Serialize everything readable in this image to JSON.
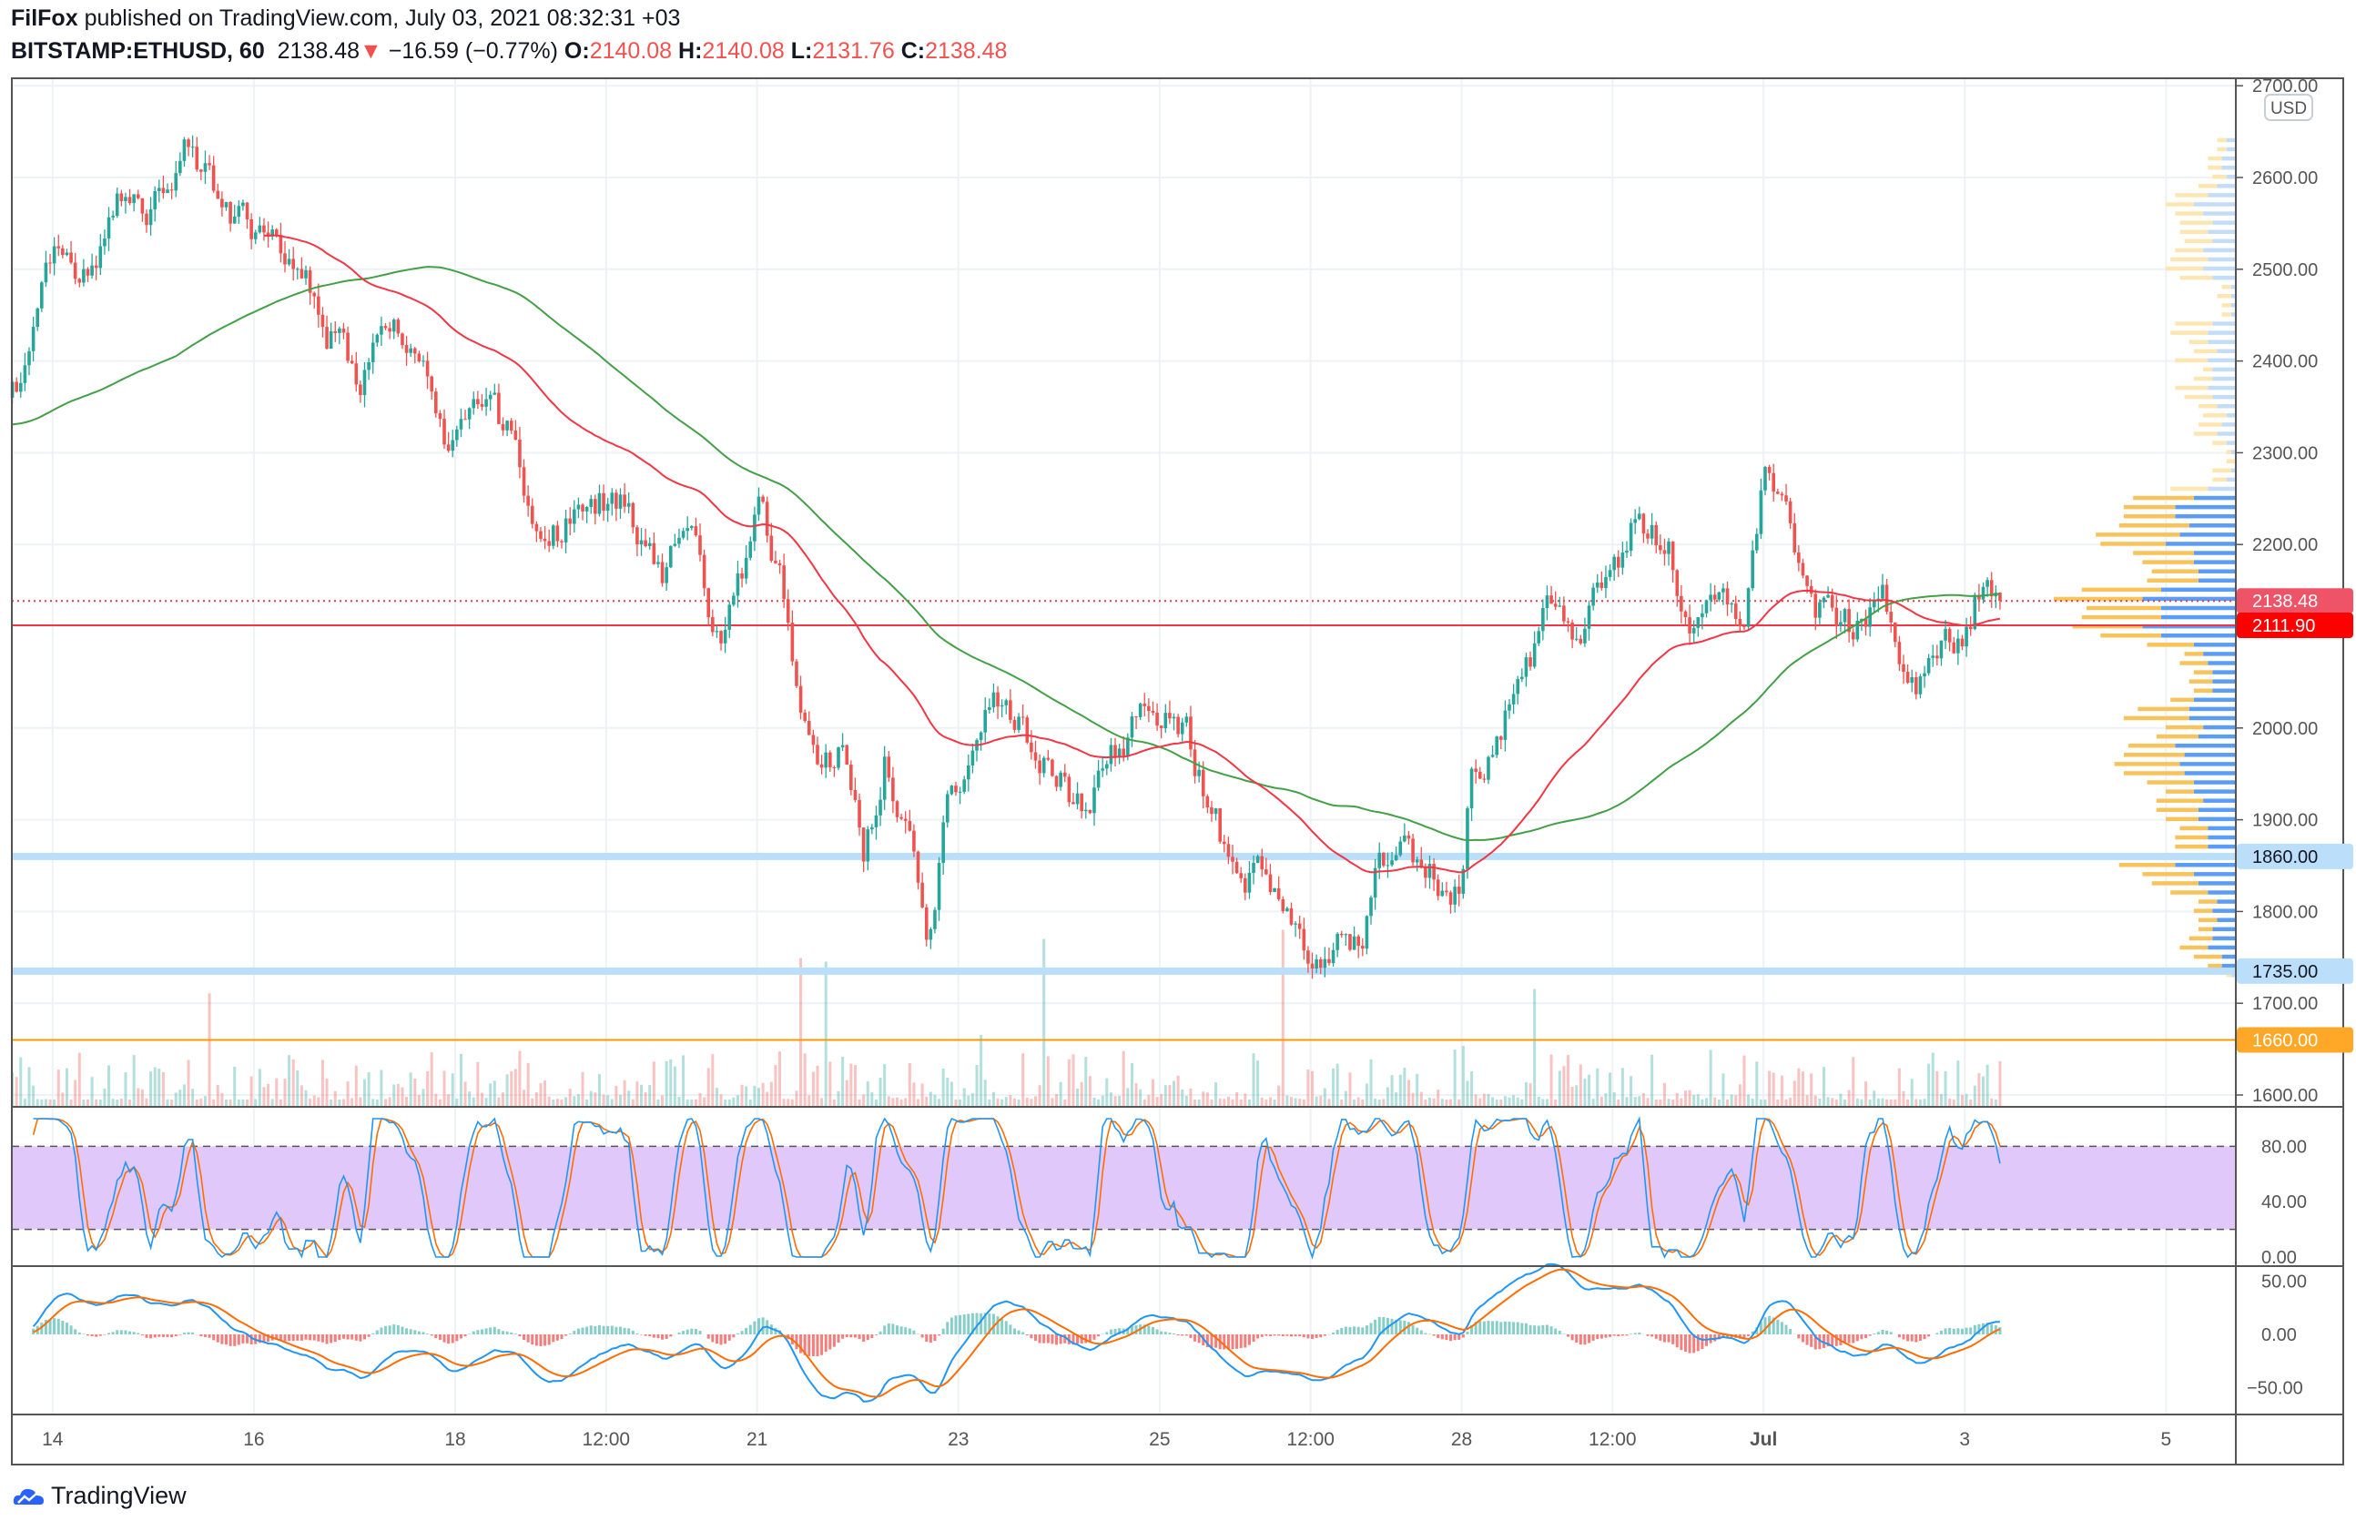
{
  "header": {
    "author": "FilFox",
    "published_text": "published on TradingView.com, July 03, 2021 08:32:31 +03",
    "symbol": "BITSTAMP:ETHUSD, 60",
    "last": "2138.48",
    "change": "−16.59 (−0.77%)",
    "o_label": "O:",
    "o": "2140.08",
    "h_label": "H:",
    "h": "2140.08",
    "l_label": "L:",
    "l": "2131.76",
    "c_label": "C:",
    "c": "2138.48"
  },
  "currency": "USD",
  "footer": {
    "brand": "TradingView"
  },
  "colors": {
    "up": "#26a69a",
    "down": "#ef5350",
    "ema_red": "#f23645",
    "ma_green": "#43a047",
    "stoch_k": "#2196f3",
    "stoch_d": "#ff6d00",
    "rsi_band": "#e1c8fb",
    "orange": "#ff9800",
    "blue_level": "#bbdefb"
  },
  "chart_data": {
    "type": "candlestick",
    "title": "BITSTAMP:ETHUSD, 60",
    "x_unit": "days since Jun 14 2021 00:00",
    "price_path": [
      [
        -0.4,
        2360
      ],
      [
        -0.3,
        2350
      ],
      [
        -0.15,
        2450
      ],
      [
        0,
        2530
      ],
      [
        0.37,
        2480
      ],
      [
        0.67,
        2565
      ],
      [
        0.9,
        2550
      ],
      [
        1.12,
        2600
      ],
      [
        1.34,
        2630
      ],
      [
        1.64,
        2580
      ],
      [
        1.94,
        2540
      ],
      [
        2.24,
        2530
      ],
      [
        2.46,
        2520
      ],
      [
        2.69,
        2435
      ],
      [
        3.06,
        2385
      ],
      [
        3.43,
        2440
      ],
      [
        3.73,
        2390
      ],
      [
        3.88,
        2320
      ],
      [
        4.1,
        2350
      ],
      [
        4.55,
        2320
      ],
      [
        4.85,
        2190
      ],
      [
        5.22,
        2240
      ],
      [
        5.67,
        2255
      ],
      [
        6.04,
        2170
      ],
      [
        6.34,
        2205
      ],
      [
        6.64,
        2080
      ],
      [
        6.94,
        2205
      ],
      [
        7.01,
        2255
      ],
      [
        7.24,
        2170
      ],
      [
        7.39,
        2025
      ],
      [
        7.61,
        1945
      ],
      [
        7.84,
        1975
      ],
      [
        8.06,
        1870
      ],
      [
        8.28,
        1975
      ],
      [
        8.51,
        1870
      ],
      [
        8.7,
        1730
      ],
      [
        8.88,
        1925
      ],
      [
        9.1,
        1945
      ],
      [
        9.33,
        2030
      ],
      [
        9.63,
        2005
      ],
      [
        9.93,
        1960
      ],
      [
        10.22,
        1910
      ],
      [
        10.52,
        1960
      ],
      [
        10.9,
        2025
      ],
      [
        11.27,
        1990
      ],
      [
        11.57,
        1900
      ],
      [
        11.79,
        1810
      ],
      [
        12.01,
        1845
      ],
      [
        12.24,
        1810
      ],
      [
        12.49,
        1745
      ],
      [
        12.76,
        1775
      ],
      [
        12.99,
        1760
      ],
      [
        13.13,
        1825
      ],
      [
        13.36,
        1885
      ],
      [
        13.66,
        1845
      ],
      [
        13.99,
        1820
      ],
      [
        14.1,
        1960
      ],
      [
        14.4,
        1990
      ],
      [
        14.55,
        2050
      ],
      [
        14.85,
        2120
      ],
      [
        15.15,
        2105
      ],
      [
        15.45,
        2155
      ],
      [
        15.75,
        2230
      ],
      [
        16.04,
        2205
      ],
      [
        16.27,
        2115
      ],
      [
        16.57,
        2155
      ],
      [
        16.79,
        2105
      ],
      [
        17.01,
        2270
      ],
      [
        17.16,
        2255
      ],
      [
        17.39,
        2155
      ],
      [
        17.61,
        2120
      ],
      [
        17.99,
        2105
      ],
      [
        18.21,
        2130
      ],
      [
        18.43,
        2030
      ],
      [
        18.66,
        2055
      ],
      [
        18.81,
        2115
      ],
      [
        19.03,
        2105
      ],
      [
        19.15,
        2155
      ],
      [
        19.36,
        2138.48
      ]
    ],
    "y_range": [
      1585,
      2710
    ],
    "y_ticks": [
      "2700.00",
      "2600.00",
      "2500.00",
      "2400.00",
      "2300.00",
      "2200.00",
      "2000.00",
      "1900.00",
      "1800.00",
      "1700.00",
      "1600.00"
    ],
    "x_ticks": [
      {
        "label": "14",
        "day": 0
      },
      {
        "label": "16",
        "day": 2
      },
      {
        "label": "18",
        "day": 4
      },
      {
        "label": "12:00",
        "day": 5.5
      },
      {
        "label": "21",
        "day": 7
      },
      {
        "label": "23",
        "day": 9
      },
      {
        "label": "25",
        "day": 11
      },
      {
        "label": "12:00",
        "day": 12.5
      },
      {
        "label": "28",
        "day": 14
      },
      {
        "label": "12:00",
        "day": 15.5
      },
      {
        "label": "Jul",
        "day": 17
      },
      {
        "label": "3",
        "day": 19
      },
      {
        "label": "5",
        "day": 21
      }
    ],
    "levels": [
      {
        "price": 2138.48,
        "label": "2138.48",
        "style": "dotted",
        "color": "#f23645",
        "badge": "#ef5367"
      },
      {
        "price": 2111.9,
        "label": "2111.90",
        "style": "solid",
        "color": "#f23645",
        "badge": "#ff0000"
      },
      {
        "price": 1860.0,
        "label": "1860.00",
        "style": "band",
        "color": "#bbdefb",
        "badge": "#bbdefb"
      },
      {
        "price": 1735.0,
        "label": "1735.00",
        "style": "band",
        "color": "#bbdefb",
        "badge": "#bbdefb"
      },
      {
        "price": 1660.0,
        "label": "1660.00",
        "style": "solid",
        "color": "#ff9800",
        "badge": "#ffa726"
      }
    ],
    "stoch_rsi": {
      "ticks": [
        "80.00",
        "40.00",
        "0.00"
      ],
      "band": [
        20,
        80
      ]
    },
    "macd": {
      "ticks": [
        "50.00",
        "0.00",
        "−50.00"
      ],
      "range": [
        -62,
        62
      ]
    }
  }
}
